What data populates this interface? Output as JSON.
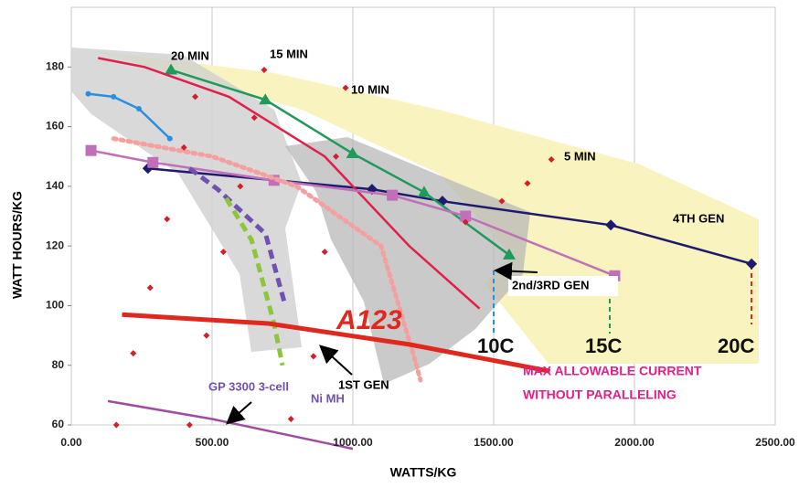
{
  "chart_data": {
    "type": "line",
    "xlabel": "WATTS/KG",
    "ylabel": "WATT HOURS/KG",
    "xlim": [
      0,
      2500
    ],
    "ylim": [
      60,
      200
    ],
    "xticks": [
      {
        "value": 0,
        "label": "0.00"
      },
      {
        "value": 500,
        "label": "500.00"
      },
      {
        "value": 1000,
        "label": "1000.00"
      },
      {
        "value": 1500,
        "label": "1500.00"
      },
      {
        "value": 2000,
        "label": "2000.00"
      },
      {
        "value": 2500,
        "label": "2500.00"
      }
    ],
    "yticks": [
      60,
      80,
      100,
      120,
      140,
      160,
      180
    ],
    "grid": "x",
    "series": [
      {
        "name": "4TH GEN",
        "color": "#1f1a6e",
        "marker": "diamond",
        "style": "solid",
        "x": [
          272,
          1068,
          1318,
          1916,
          2416
        ],
        "values": [
          146,
          139,
          135,
          127,
          114
        ]
      },
      {
        "color": "#1f9a5a",
        "marker": "triangle",
        "style": "solid",
        "x": [
          354,
          689,
          999,
          1253,
          1555
        ],
        "values": [
          179,
          169,
          151,
          138,
          117
        ]
      },
      {
        "color": "#e0204a",
        "marker": "none",
        "style": "solid",
        "x": [
          95,
          260,
          560,
          900,
          1200,
          1450
        ],
        "values": [
          183,
          180,
          170,
          150,
          120,
          99
        ]
      },
      {
        "color": "#c070b8",
        "marker": "square",
        "style": "solid",
        "x": [
          70,
          290,
          720,
          1140,
          1400,
          1930
        ],
        "values": [
          152,
          148,
          142,
          137,
          130,
          110
        ]
      },
      {
        "color": "#2a8ee0",
        "marker": "circle",
        "style": "solid",
        "x": [
          60,
          150,
          240,
          350
        ],
        "values": [
          171,
          170,
          166,
          156
        ]
      },
      {
        "color": "#7050b0",
        "marker": "none",
        "style": "dashed",
        "x": [
          420,
          520,
          690,
          760
        ],
        "values": [
          146,
          139,
          124,
          100
        ]
      },
      {
        "color": "#8cc63f",
        "marker": "none",
        "style": "dashed",
        "x": [
          550,
          640,
          720,
          750
        ],
        "values": [
          136,
          122,
          94,
          80
        ]
      },
      {
        "color": "#f4a0a0",
        "marker": "none",
        "style": "dotted",
        "x": [
          150,
          500,
          800,
          1100,
          1220,
          1240
        ],
        "values": [
          156,
          150,
          140,
          120,
          82,
          75
        ]
      },
      {
        "name": "A123",
        "color": "#e0281e",
        "marker": "none",
        "style": "thick",
        "x": [
          180,
          700,
          1200,
          1700
        ],
        "values": [
          97,
          94,
          87,
          78
        ]
      },
      {
        "name": "GP 3300 3-cell",
        "color": "#a04ca0",
        "marker": "none",
        "style": "solid",
        "x": [
          130,
          500,
          1000
        ],
        "values": [
          68,
          62,
          52
        ]
      },
      {
        "name": "20 MIN",
        "color": "#d0202a",
        "marker": "dot",
        "style": "points",
        "x": [
          160,
          220,
          280,
          340,
          400,
          440
        ],
        "values": [
          60,
          84,
          106,
          129,
          153,
          170
        ]
      },
      {
        "name": "15 MIN",
        "color": "#d0202a",
        "marker": "dot",
        "style": "points",
        "x": [
          420,
          480,
          540,
          600,
          650,
          685
        ],
        "values": [
          60,
          90,
          118,
          140,
          163,
          179
        ]
      },
      {
        "name": "10 MIN",
        "color": "#d0202a",
        "marker": "dot",
        "style": "points",
        "x": [
          780,
          860,
          900,
          940,
          974
        ],
        "values": [
          62,
          83,
          118,
          150,
          173
        ]
      },
      {
        "name": "5 MIN",
        "color": "#d0202a",
        "marker": "dot",
        "style": "points",
        "x": [
          1400,
          1529,
          1620,
          1705
        ],
        "values": [
          128,
          135,
          141,
          149
        ]
      }
    ],
    "annotations": [
      "2nd/3RD GEN",
      "1ST GEN",
      "Ni MH",
      "MAX ALLOWABLE CURRENT",
      "WITHOUT PARALLELING",
      "10C",
      "15C",
      "20C"
    ]
  }
}
